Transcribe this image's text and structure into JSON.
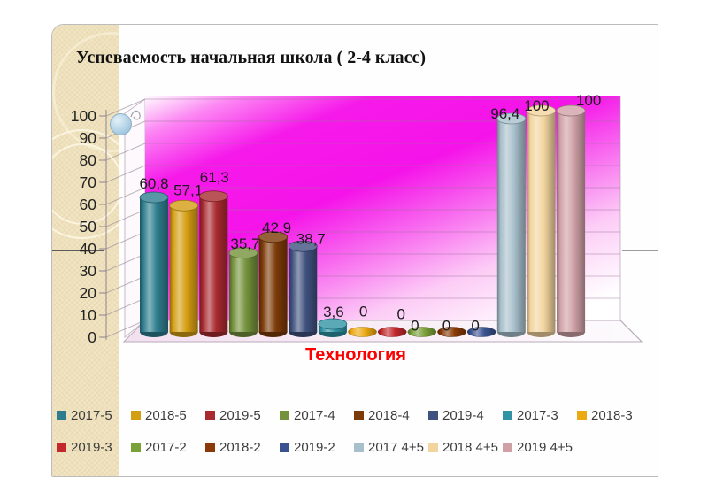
{
  "slide": {
    "title": "Успеваемость начальная школа ( 2-4  класс)",
    "category_label": "Технология"
  },
  "chart_data": {
    "type": "bar",
    "subtype": "3d-cylinder-column",
    "title": "Успеваемость начальная школа ( 2-4 класс)",
    "x_category": "Технология",
    "grid": true,
    "legend_position": "bottom",
    "y_axis": {
      "min": 0,
      "max": 100,
      "step": 10,
      "tick_labels": [
        "0",
        "10",
        "20",
        "30",
        "40",
        "50",
        "60",
        "70",
        "80",
        "90",
        "100"
      ]
    },
    "series": [
      {
        "name": "2017-5",
        "value": 60.8,
        "label": "60,8",
        "color": "#2e7d8e"
      },
      {
        "name": "2018-5",
        "value": 57.1,
        "label": "57,1",
        "color": "#d49e12"
      },
      {
        "name": "2019-5",
        "value": 61.3,
        "label": "61,3",
        "color": "#a82a30"
      },
      {
        "name": "2017-4",
        "value": 35.7,
        "label": "35,7",
        "color": "#74923b"
      },
      {
        "name": "2018-4",
        "value": 42.9,
        "label": "42,9",
        "color": "#7c3a08"
      },
      {
        "name": "2019-4",
        "value": 38.7,
        "label": "38,7",
        "color": "#3f517e"
      },
      {
        "name": "2017-3",
        "value": 3.6,
        "label": "3,6",
        "color": "#2f93a5"
      },
      {
        "name": "2018-3",
        "value": 0,
        "label": "0",
        "color": "#eba912"
      },
      {
        "name": "2019-3",
        "value": 0,
        "label": "0",
        "color": "#c2282c"
      },
      {
        "name": "2017-2",
        "value": 0,
        "label": "0",
        "color": "#7aa038"
      },
      {
        "name": "2018-2",
        "value": 0,
        "label": "0",
        "color": "#8a3a06"
      },
      {
        "name": "2019-2",
        "value": 0,
        "label": "0",
        "color": "#3a5390"
      },
      {
        "name": "2017 4+5",
        "value": 96.4,
        "label": "96,4",
        "color": "#a8c0cc"
      },
      {
        "name": "2018 4+5",
        "value": 100,
        "label": "100",
        "color": "#f2d49e"
      },
      {
        "name": "2019 4+5",
        "value": 100,
        "label": "100",
        "color": "#cfa1a7"
      }
    ],
    "colors": {
      "plot_background_magenta": "#f414ea",
      "category_label": "#ff0000",
      "side_strip": "#eee0ba"
    }
  }
}
